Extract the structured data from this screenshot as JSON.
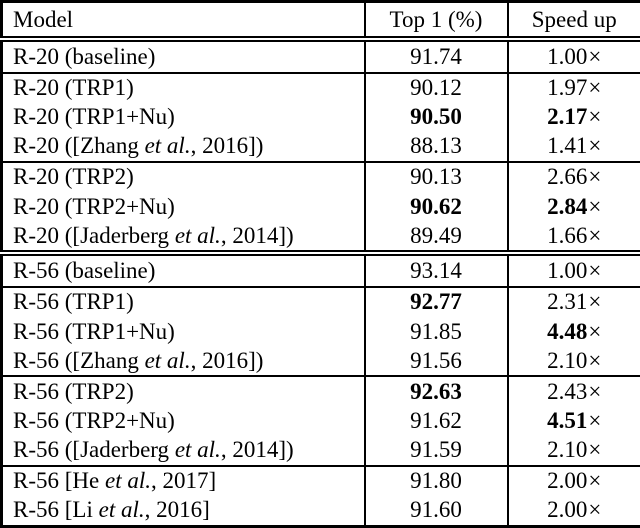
{
  "table": {
    "columns": [
      "Model",
      "Top 1 (%)",
      "Speed up"
    ],
    "multiply_symbol": "×",
    "colors": {
      "border": "#000000",
      "text": "#000000",
      "background": "#ffffff"
    },
    "groups": [
      {
        "section_end": false,
        "rows": [
          {
            "model_pre": "R-20 (baseline)",
            "model_italic": "",
            "model_post": "",
            "top1": "91.74",
            "top1_bold": false,
            "speed": "1.00",
            "speed_bold": false
          }
        ]
      },
      {
        "section_end": false,
        "rows": [
          {
            "model_pre": "R-20 (TRP1)",
            "model_italic": "",
            "model_post": "",
            "top1": "90.12",
            "top1_bold": false,
            "speed": "1.97",
            "speed_bold": false
          },
          {
            "model_pre": "R-20 (TRP1+Nu)",
            "model_italic": "",
            "model_post": "",
            "top1": "90.50",
            "top1_bold": true,
            "speed": "2.17",
            "speed_bold": true
          },
          {
            "model_pre": "R-20 ([Zhang ",
            "model_italic": "et al.",
            "model_post": ", 2016])",
            "top1": "88.13",
            "top1_bold": false,
            "speed": "1.41",
            "speed_bold": false
          }
        ]
      },
      {
        "section_end": true,
        "rows": [
          {
            "model_pre": "R-20 (TRP2)",
            "model_italic": "",
            "model_post": "",
            "top1": "90.13",
            "top1_bold": false,
            "speed": "2.66",
            "speed_bold": false
          },
          {
            "model_pre": "R-20 (TRP2+Nu)",
            "model_italic": "",
            "model_post": "",
            "top1": "90.62",
            "top1_bold": true,
            "speed": "2.84",
            "speed_bold": true
          },
          {
            "model_pre": "R-20 ([Jaderberg ",
            "model_italic": "et al.",
            "model_post": ", 2014])",
            "top1": "89.49",
            "top1_bold": false,
            "speed": "1.66",
            "speed_bold": false
          }
        ]
      },
      {
        "section_end": false,
        "rows": [
          {
            "model_pre": "R-56 (baseline)",
            "model_italic": "",
            "model_post": "",
            "top1": "93.14",
            "top1_bold": false,
            "speed": "1.00",
            "speed_bold": false
          }
        ]
      },
      {
        "section_end": false,
        "rows": [
          {
            "model_pre": "R-56 (TRP1)",
            "model_italic": "",
            "model_post": "",
            "top1": "92.77",
            "top1_bold": true,
            "speed": "2.31",
            "speed_bold": false
          },
          {
            "model_pre": "R-56 (TRP1+Nu)",
            "model_italic": "",
            "model_post": "",
            "top1": "91.85",
            "top1_bold": false,
            "speed": "4.48",
            "speed_bold": true
          },
          {
            "model_pre": "R-56 ([Zhang ",
            "model_italic": "et al.",
            "model_post": ", 2016])",
            "top1": "91.56",
            "top1_bold": false,
            "speed": "2.10",
            "speed_bold": false
          }
        ]
      },
      {
        "section_end": false,
        "rows": [
          {
            "model_pre": "R-56 (TRP2)",
            "model_italic": "",
            "model_post": "",
            "top1": "92.63",
            "top1_bold": true,
            "speed": "2.43",
            "speed_bold": false
          },
          {
            "model_pre": "R-56 (TRP2+Nu)",
            "model_italic": "",
            "model_post": "",
            "top1": "91.62",
            "top1_bold": false,
            "speed": "4.51",
            "speed_bold": true
          },
          {
            "model_pre": "R-56 ([Jaderberg ",
            "model_italic": "et al.",
            "model_post": ", 2014])",
            "top1": "91.59",
            "top1_bold": false,
            "speed": "2.10",
            "speed_bold": false
          }
        ]
      },
      {
        "section_end": false,
        "rows": [
          {
            "model_pre": "R-56 [He ",
            "model_italic": "et al.",
            "model_post": ", 2017]",
            "top1": "91.80",
            "top1_bold": false,
            "speed": "2.00",
            "speed_bold": false
          },
          {
            "model_pre": "R-56 [Li ",
            "model_italic": "et al.",
            "model_post": ", 2016]",
            "top1": "91.60",
            "top1_bold": false,
            "speed": "2.00",
            "speed_bold": false
          }
        ]
      }
    ]
  }
}
